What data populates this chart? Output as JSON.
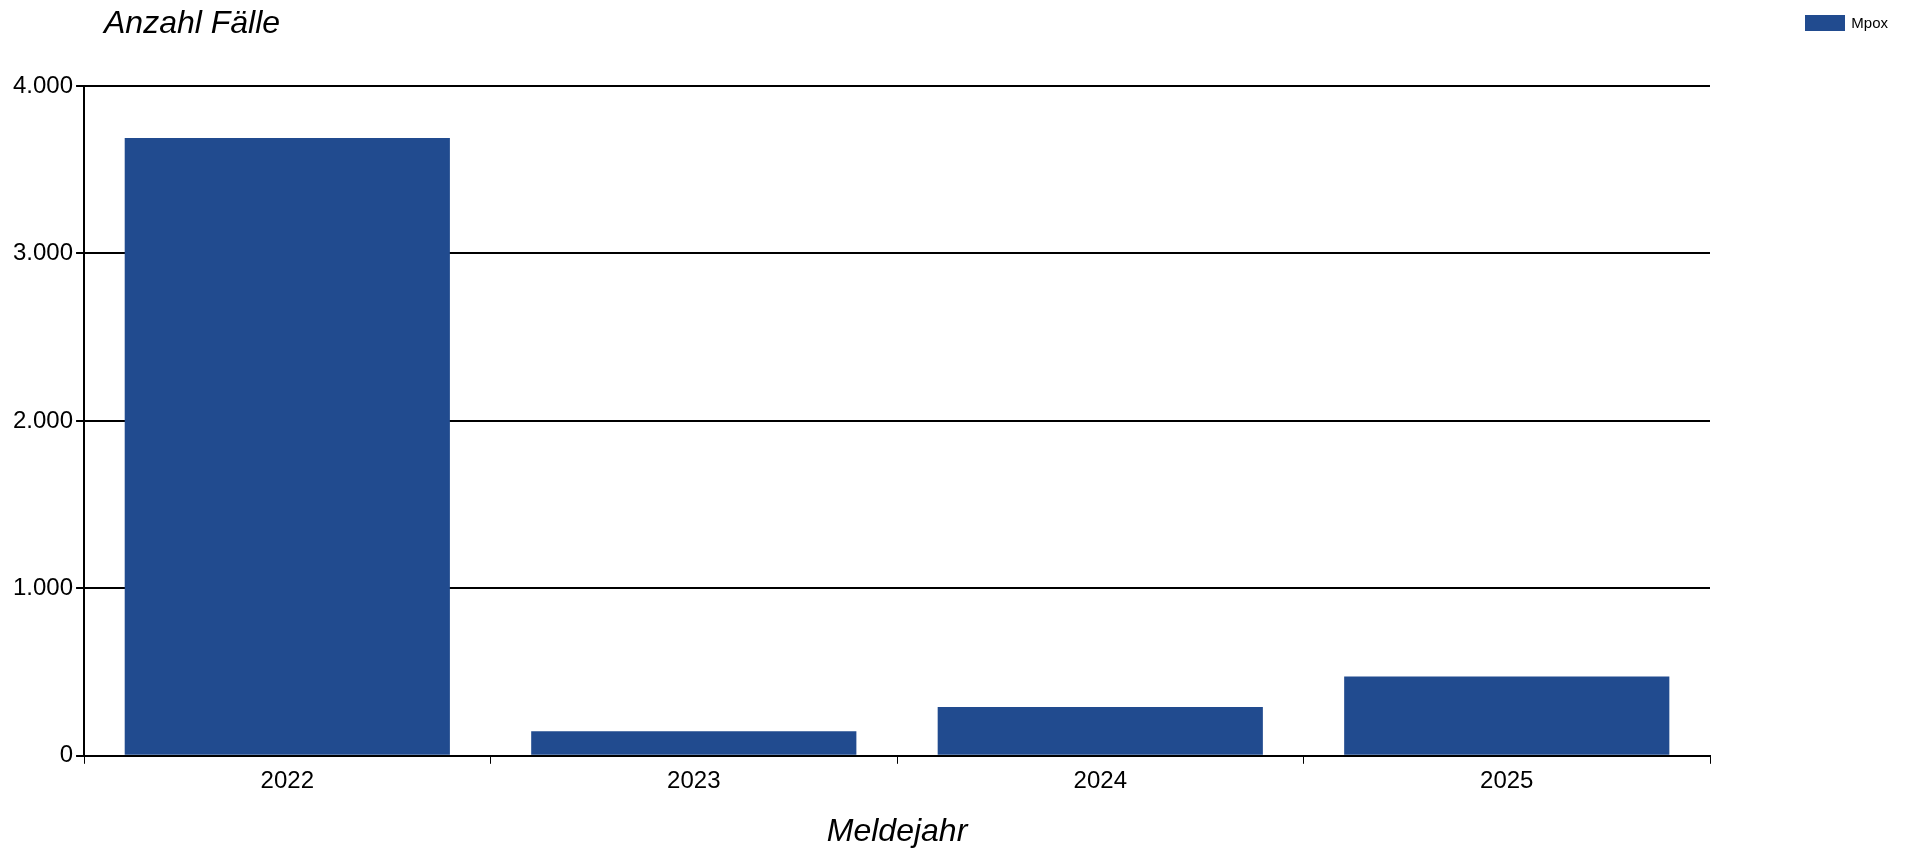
{
  "chart_data": {
    "type": "bar",
    "ylabel": "Anzahl Fälle",
    "xlabel": "Meldejahr",
    "categories": [
      "2022",
      "2023",
      "2024",
      "2025"
    ],
    "series": [
      {
        "name": "Mpox",
        "color": "#214b8f",
        "values": [
          3690,
          146,
          291,
          474
        ]
      }
    ],
    "ylim": [
      0,
      4000
    ],
    "yticks": [
      {
        "value": 0,
        "label": "0"
      },
      {
        "value": 1000,
        "label": "1.000"
      },
      {
        "value": 2000,
        "label": "2.000"
      },
      {
        "value": 3000,
        "label": "3.000"
      },
      {
        "value": 4000,
        "label": "4.000"
      }
    ],
    "grid": "y",
    "legend": "top right"
  }
}
